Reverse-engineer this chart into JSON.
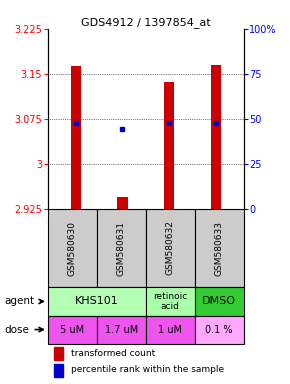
{
  "title": "GDS4912 / 1397854_at",
  "samples": [
    "GSM580630",
    "GSM580631",
    "GSM580632",
    "GSM580633"
  ],
  "bar_values": [
    3.163,
    2.945,
    3.137,
    3.165
  ],
  "bar_base": 2.925,
  "percentile_values": [
    3.068,
    3.058,
    3.068,
    3.068
  ],
  "ylim_left": [
    2.925,
    3.225
  ],
  "yticks_left": [
    2.925,
    3.0,
    3.075,
    3.15,
    3.225
  ],
  "ytick_labels_left": [
    "2.925",
    "3",
    "3.075",
    "3.15",
    "3.225"
  ],
  "yticks_right_pct": [
    0,
    25,
    50,
    75,
    100
  ],
  "ytick_labels_right": [
    "0",
    "25",
    "50",
    "75",
    "100%"
  ],
  "bar_color": "#cc0000",
  "dot_color": "#0000cc",
  "agent_data": [
    {
      "cols": [
        0,
        1
      ],
      "text": "KHS101",
      "color": "#b3ffb3",
      "fontsize": 8
    },
    {
      "cols": [
        2
      ],
      "text": "retinoic\nacid",
      "color": "#aaffaa",
      "fontsize": 6.5
    },
    {
      "cols": [
        3
      ],
      "text": "DMSO",
      "color": "#33cc33",
      "fontsize": 8
    }
  ],
  "dose_labels": [
    "5 uM",
    "1.7 uM",
    "1 uM",
    "0.1 %"
  ],
  "dose_colors": [
    "#ee55ee",
    "#ee55ee",
    "#ee55ee",
    "#ffaaff"
  ],
  "legend_bar_label": "transformed count",
  "legend_dot_label": "percentile rank within the sample"
}
